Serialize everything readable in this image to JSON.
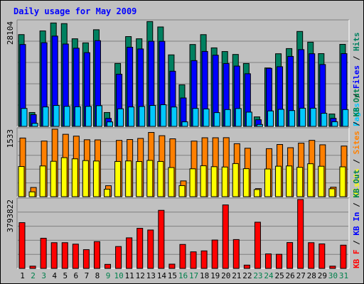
{
  "chart_data": {
    "title": "Daily usage for May 2009",
    "days": [
      "1",
      "2",
      "3",
      "4",
      "5",
      "6",
      "7",
      "8",
      "9",
      "10",
      "11",
      "12",
      "13",
      "14",
      "15",
      "16",
      "17",
      "18",
      "19",
      "20",
      "21",
      "22",
      "23",
      "24",
      "25",
      "26",
      "27",
      "28",
      "29",
      "30",
      "31"
    ],
    "weekend_days": [
      "2",
      "3",
      "9",
      "10",
      "16",
      "17",
      "23",
      "24",
      "30",
      "31"
    ],
    "colors": {
      "background": "#c0c0c0",
      "weekday_label": "#000000",
      "weekend_label": "#00804c",
      "hits": "#008060",
      "files": "#0000ff",
      "pages": "#00c8ff",
      "visits": "#ffff00",
      "sites": "#ff8000",
      "kb": "#ff0000"
    },
    "panels": [
      {
        "type": "bar",
        "max_label": "28104",
        "ylim": [
          0,
          28104
        ],
        "legend": [
          {
            "text": "Pages",
            "color": "#00c8ff"
          },
          {
            "text": " / ",
            "color": "#000000"
          },
          {
            "text": "Files",
            "color": "#0000ff"
          },
          {
            "text": " / ",
            "color": "#000000"
          },
          {
            "text": "Hits",
            "color": "#008060"
          }
        ],
        "series": [
          {
            "name": "Hits",
            "color": "#008060",
            "values": [
              24550,
              3710,
              25530,
              27660,
              27490,
              23430,
              22340,
              25850,
              3710,
              16830,
              24020,
              23430,
              28040,
              26590,
              19130,
              11120,
              21900,
              24540,
              21000,
              20020,
              19240,
              16820,
              2540,
              15630,
              19430,
              20810,
              25390,
              22530,
              19460,
              3320,
              21940
            ]
          },
          {
            "name": "Files",
            "color": "#0000ff",
            "values": [
              21900,
              3130,
              22380,
              24150,
              22030,
              20910,
              19720,
              22930,
              2140,
              13960,
              21170,
              20710,
              22770,
              22750,
              14750,
              7600,
              17590,
              20050,
              19040,
              16820,
              16130,
              14080,
              1770,
              15530,
              15960,
              18720,
              20530,
              19430,
              16540,
              2150,
              19460
            ]
          },
          {
            "name": "Pages",
            "color": "#00c8ff",
            "values": [
              4800,
              820,
              5200,
              5600,
              5350,
              5250,
              5350,
              5530,
              1200,
              4700,
              5200,
              5320,
              5600,
              5790,
              5180,
              1220,
              4800,
              4660,
              3680,
              4500,
              4780,
              3810,
              510,
              4130,
              4560,
              4230,
              4860,
              4860,
              3500,
              1240,
              4500
            ]
          }
        ]
      },
      {
        "type": "bar",
        "max_label": "1533",
        "ylim": [
          0,
          1533
        ],
        "legend": [
          {
            "text": "Visits",
            "color": "#ffff00"
          },
          {
            "text": " / ",
            "color": "#000000"
          },
          {
            "text": "Sites",
            "color": "#ff8000"
          },
          {
            "text": " / ",
            "color": "#000000"
          },
          {
            "text": "KB Out",
            "color": "#00804c"
          }
        ],
        "series": [
          {
            "name": "Sites",
            "color": "#ff8000",
            "values": [
              1333,
              209,
              1264,
              1533,
              1418,
              1376,
              1294,
              1291,
              249,
              1279,
              1299,
              1324,
              1460,
              1386,
              1315,
              358,
              1263,
              1339,
              1339,
              1341,
              1204,
              1101,
              183,
              1091,
              1186,
              1113,
              1217,
              1280,
              1179,
              216,
              1151
            ]
          },
          {
            "name": "Visits",
            "color": "#ffff00",
            "values": [
              685,
              110,
              698,
              804,
              887,
              860,
              820,
              810,
              170,
              800,
              812,
              798,
              824,
              800,
              662,
              251,
              633,
              703,
              681,
              674,
              752,
              636,
              162,
              629,
              692,
              698,
              667,
              748,
              691,
              180,
              678
            ]
          }
        ]
      },
      {
        "type": "bar",
        "max_label": "3793822",
        "ylim": [
          0,
          3793822
        ],
        "legend": [
          {
            "text": "KB F",
            "color": "#ff0000"
          },
          {
            "text": " / ",
            "color": "#000000"
          },
          {
            "text": "KB In",
            "color": "#0000ff"
          },
          {
            "text": " / ",
            "color": "#000000"
          },
          {
            "text": "KB Out",
            "color": "#00804c"
          }
        ],
        "series": [
          {
            "name": "KB F",
            "color": "#ff0000",
            "values": [
              2520000,
              123000,
              1660000,
              1417000,
              1417000,
              1336000,
              1033000,
              1475000,
              222000,
              1205000,
              1684000,
              2208000,
              2114000,
              3198000,
              234000,
              1320000,
              912000,
              964000,
              1563000,
              3496000,
              1588000,
              181000,
              2544000,
              798000,
              776000,
              1424000,
              3794000,
              1417000,
              1349000,
              123000,
              1280000
            ]
          }
        ]
      }
    ]
  }
}
